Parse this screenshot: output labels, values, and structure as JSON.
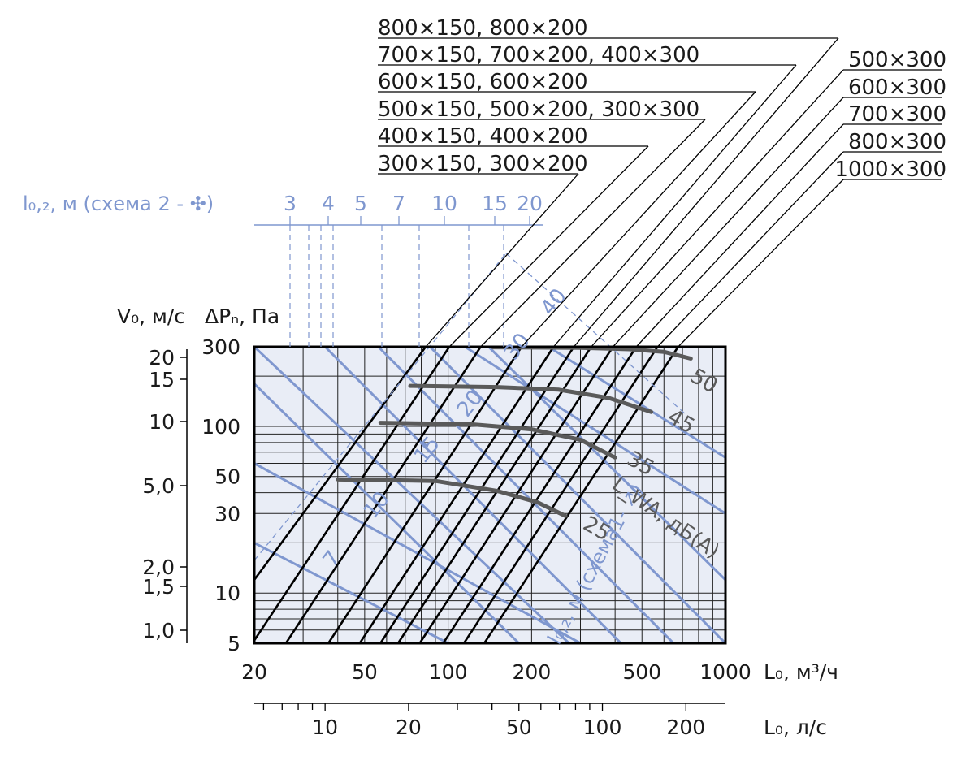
{
  "colors": {
    "background": "#ffffff",
    "plot_fill": "#e9edf6",
    "grid": "#222222",
    "duct_lines": "#000000",
    "throw_lines": "#7f97cf",
    "noise_curves": "#5a5a5a",
    "text": "#1a1a1a",
    "blue_text": "#7f97cf"
  },
  "chart_data": {
    "type": "line",
    "x_axis": {
      "label": "L₀, м³/ч",
      "scale": "log",
      "range": [
        20,
        1000
      ],
      "ticks": [
        "20",
        "50",
        "100",
        "200",
        "500",
        "1000"
      ]
    },
    "x2_axis": {
      "label": "L₀, л/с",
      "scale": "log",
      "ticks": [
        "10",
        "20",
        "50",
        "100",
        "200"
      ]
    },
    "y_axis": {
      "label": "ΔPₙ, Па",
      "scale": "log",
      "range": [
        5,
        300
      ],
      "ticks": [
        "5",
        "10",
        "30",
        "50",
        "100",
        "300"
      ]
    },
    "y2_axis": {
      "label": "V₀, м/с",
      "ticks": [
        "1,0",
        "1,5",
        "2,0",
        "5,0",
        "10",
        "15",
        "20"
      ]
    },
    "top_axis": {
      "label": "l₀,₂, м (схема 2 - ✣)",
      "ticks": [
        "3",
        "4",
        "5",
        "7",
        "10",
        "15",
        "20"
      ]
    },
    "duct_sizes": [
      "300×150, 300×200",
      "400×150, 400×200",
      "500×150, 500×200, 300×300",
      "600×150, 600×200",
      "700×150, 700×200, 400×300",
      "800×150, 800×200",
      "500×300",
      "600×300",
      "700×300",
      "800×300",
      "1000×300"
    ],
    "duct_series": [
      {
        "name": "300×150, 300×200",
        "x": [
          20,
          83
        ],
        "y": [
          12,
          300
        ]
      },
      {
        "name": "400×150, 400×200",
        "x": [
          20,
          101
        ],
        "y": [
          5.2,
          300
        ]
      },
      {
        "name": "500×150, 500×200, 300×300",
        "x": [
          26,
          131
        ],
        "y": [
          5,
          300
        ]
      },
      {
        "name": "600×150, 600×200",
        "x": [
          37,
          184
        ],
        "y": [
          5,
          300
        ]
      },
      {
        "name": "700×150, 700×200, 400×300",
        "x": [
          48,
          240
        ],
        "y": [
          5,
          300
        ]
      },
      {
        "name": "800×150, 800×200",
        "x": [
          57,
          284
        ],
        "y": [
          5,
          300
        ]
      },
      {
        "name": "500×300",
        "x": [
          66,
          328
        ],
        "y": [
          5,
          300
        ]
      },
      {
        "name": "600×300",
        "x": [
          79,
          393
        ],
        "y": [
          5,
          300
        ]
      },
      {
        "name": "700×300",
        "x": [
          96,
          477
        ],
        "y": [
          5,
          300
        ]
      },
      {
        "name": "800×300",
        "x": [
          114,
          569
        ],
        "y": [
          5,
          300
        ]
      },
      {
        "name": "1000×300",
        "x": [
          135,
          675
        ],
        "y": [
          5,
          300
        ]
      }
    ],
    "noise_series": [
      {
        "name": "25",
        "x": [
          40,
          90,
          150,
          210,
          265
        ],
        "y": [
          48,
          47,
          41,
          35,
          29
        ]
      },
      {
        "name": "35",
        "x": [
          57,
          120,
          200,
          300,
          400
        ],
        "y": [
          105,
          103,
          96,
          83,
          65
        ]
      },
      {
        "name": "45",
        "x": [
          73,
          150,
          250,
          380,
          540
        ],
        "y": [
          175,
          172,
          166,
          148,
          122
        ]
      },
      {
        "name": "50",
        "x": [
          145,
          300,
          450,
          600,
          750
        ],
        "y": [
          298,
          296,
          290,
          280,
          255
        ]
      }
    ],
    "noise_label": "L_WA, дБ(А)",
    "throw_series": [
      {
        "name": "7",
        "x": [
          20,
          180
        ],
        "y": [
          180,
          5
        ]
      },
      {
        "name": "10",
        "x": [
          20,
          273
        ],
        "y": [
          300,
          5
        ]
      },
      {
        "name": "15",
        "x": [
          36,
          420
        ],
        "y": [
          300,
          5
        ]
      },
      {
        "name": "20",
        "x": [
          56,
          650
        ],
        "y": [
          300,
          5
        ]
      },
      {
        "name": "30",
        "x": [
          86,
          1000
        ],
        "y": [
          300,
          5
        ]
      },
      {
        "name": "40",
        "x": [
          140,
          1000
        ],
        "y": [
          300,
          12
        ]
      }
    ],
    "throw_label": "l₀,₂, м (схема1- ↗)"
  }
}
